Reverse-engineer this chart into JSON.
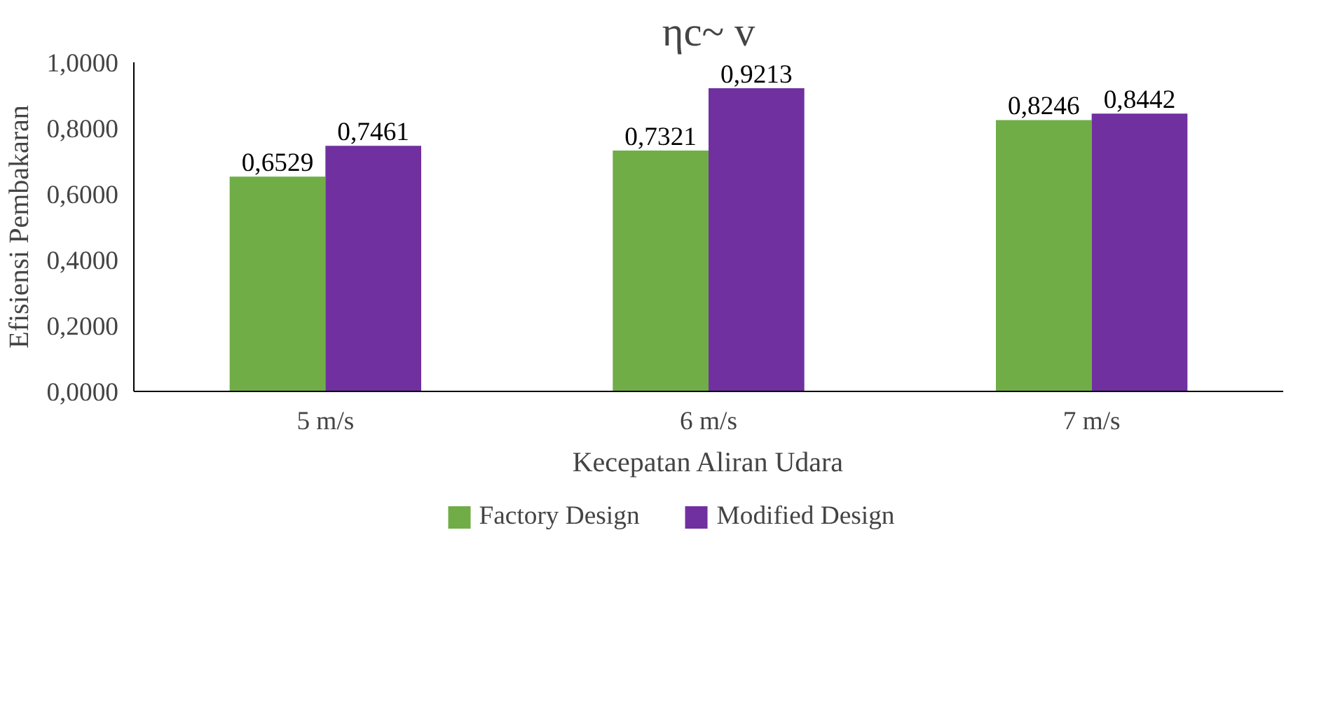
{
  "chart_data": {
    "type": "bar",
    "title": "ηc~ v",
    "xlabel": "Kecepatan Aliran Udara",
    "ylabel": "Efisiensi Pembakaran",
    "categories": [
      "5 m/s",
      "6 m/s",
      "7 m/s"
    ],
    "series": [
      {
        "name": "Factory Design",
        "color": "#70ad47",
        "values": [
          0.6529,
          0.7321,
          0.8246
        ],
        "value_labels": [
          "0,6529",
          "0,7321",
          "0,8246"
        ]
      },
      {
        "name": "Modified Design",
        "color": "#7030a0",
        "values": [
          0.7461,
          0.9213,
          0.8442
        ],
        "value_labels": [
          "0,7461",
          "0,9213",
          "0,8442"
        ]
      }
    ],
    "ylim": [
      0,
      1
    ],
    "yticks": [
      {
        "value": 0,
        "label": "0,0000"
      },
      {
        "value": 0.2,
        "label": "0,2000"
      },
      {
        "value": 0.4,
        "label": "0,4000"
      },
      {
        "value": 0.6,
        "label": "0,6000"
      },
      {
        "value": 0.8,
        "label": "0,8000"
      },
      {
        "value": 1,
        "label": "1,0000"
      }
    ],
    "grid": false,
    "legend": "bottom"
  }
}
